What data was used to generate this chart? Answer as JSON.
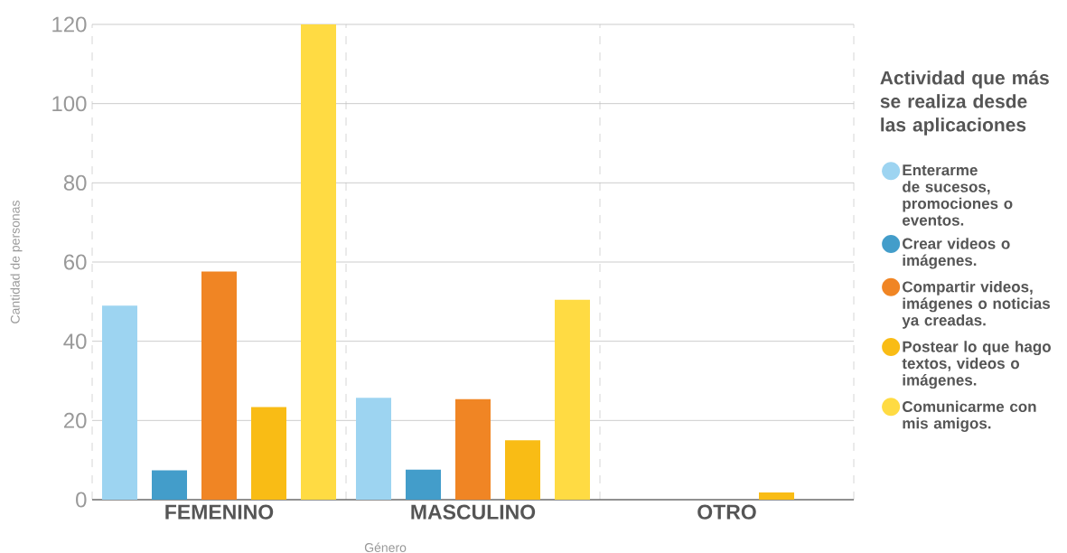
{
  "chart_data": {
    "type": "bar",
    "categories": [
      "FEMENINO",
      "MASCULINO",
      "OTRO"
    ],
    "xlabel": "Género",
    "ylabel": "Cantidad de personas",
    "legend_title": "Actividad que más se realiza desde las aplicaciones",
    "series": [
      {
        "name": "Enterarme de sucesos, promociones o eventos.",
        "color": "#9dd4f1",
        "values": [
          49,
          25.7,
          0
        ]
      },
      {
        "name": "Crear videos o imágenes.",
        "color": "#439dca",
        "values": [
          7.4,
          7.6,
          0
        ]
      },
      {
        "name": "Compartir videos, imágenes o noticias ya creadas.",
        "color": "#f08524",
        "values": [
          57.6,
          25.4,
          0
        ]
      },
      {
        "name": "Postear lo que hago textos, videos o imágenes.",
        "color": "#f9bc15",
        "values": [
          23.4,
          15,
          1.8
        ]
      },
      {
        "name": "Comunicarme con mis amigos.",
        "color": "#ffdb43",
        "values": [
          120,
          50.5,
          0
        ]
      }
    ],
    "ylim": [
      0,
      120
    ],
    "yticks": [
      0,
      20,
      40,
      60,
      80,
      100,
      120
    ],
    "grid": "y",
    "legend": "right"
  }
}
